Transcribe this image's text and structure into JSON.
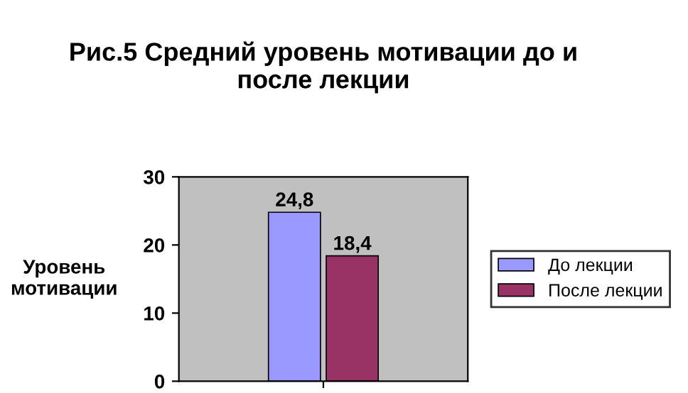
{
  "chart_data": {
    "type": "bar",
    "title": "Рис.5 Средний уровень мотивации до и\nпосле лекции",
    "ylabel": "Уровень\nмотивации",
    "categories": [
      null
    ],
    "series": [
      {
        "name": "До лекции",
        "color": "#9999ff",
        "values": [
          24.8
        ],
        "value_labels": [
          "24,8"
        ]
      },
      {
        "name": "После лекции",
        "color": "#993366",
        "values": [
          18.4
        ],
        "value_labels": [
          "18,4"
        ]
      }
    ],
    "ylim": [
      0,
      30
    ],
    "yticks": [
      0,
      10,
      20,
      30
    ],
    "grid": false,
    "legend": "right"
  }
}
